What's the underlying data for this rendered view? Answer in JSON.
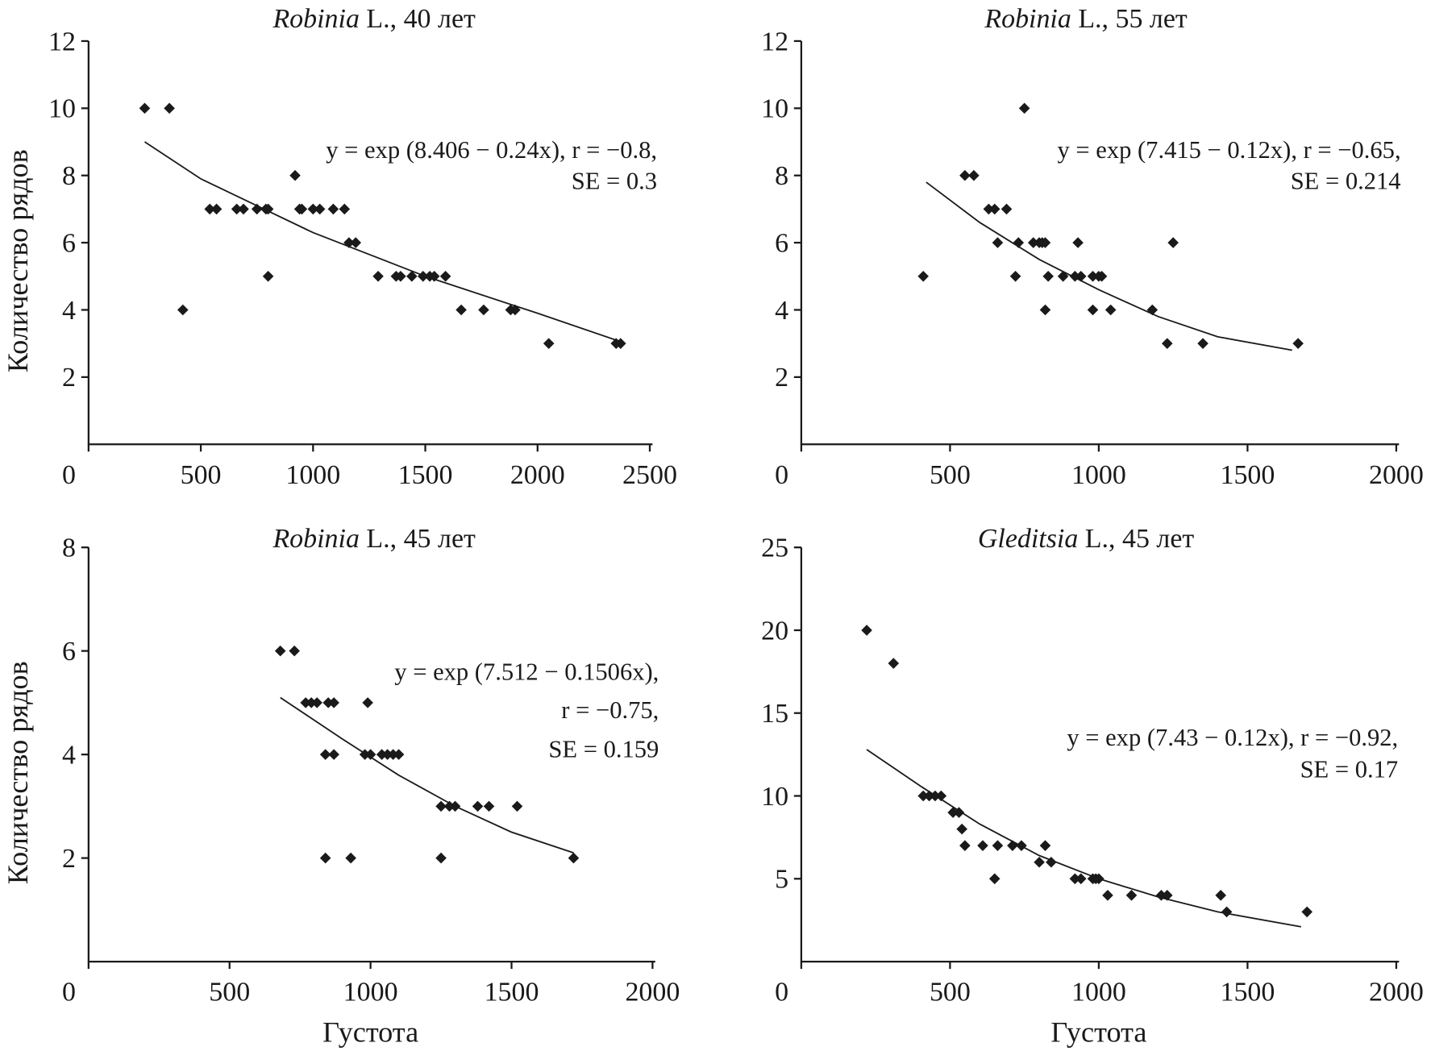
{
  "chart_data": [
    {
      "type": "scatter",
      "title_genus": "Robinia",
      "title_rest": "L., 40 лет",
      "annotation": [
        "y = exp (8.406 − 0.24x), r = −0.8,",
        "SE = 0.3"
      ],
      "y_label": "Количество рядов",
      "xlim": [
        0,
        2500
      ],
      "ylim": [
        0,
        12
      ],
      "xticks": [
        0,
        500,
        1000,
        1500,
        2000,
        2500
      ],
      "yticks": [
        2,
        4,
        6,
        8,
        10,
        12
      ],
      "color": "#1a1a1a",
      "x": [
        250,
        360,
        420,
        540,
        570,
        660,
        690,
        750,
        790,
        800,
        800,
        920,
        940,
        950,
        1000,
        1030,
        1090,
        1140,
        1160,
        1190,
        1290,
        1370,
        1390,
        1440,
        1490,
        1520,
        1540,
        1590,
        1660,
        1760,
        1880,
        1900,
        2050,
        2350,
        2370
      ],
      "values": [
        10,
        10,
        4,
        7,
        7,
        7,
        7,
        7,
        7,
        7,
        5,
        8,
        7,
        7,
        7,
        7,
        7,
        7,
        6,
        6,
        5,
        5,
        5,
        5,
        5,
        5,
        5,
        5,
        4,
        4,
        4,
        4,
        3,
        3,
        3
      ],
      "trend": {
        "x": [
          250,
          500,
          1000,
          1500,
          2000,
          2350
        ],
        "values": [
          9,
          7.9,
          6.3,
          5,
          3.9,
          3.1
        ]
      }
    },
    {
      "type": "scatter",
      "title_genus": "Robinia",
      "title_rest": "L., 55 лет",
      "annotation": [
        "y = exp (7.415 − 0.12x), r = −0.65,",
        "SE = 0.214"
      ],
      "xlim": [
        0,
        2000
      ],
      "ylim": [
        0,
        12
      ],
      "xticks": [
        0,
        500,
        1000,
        1500,
        2000
      ],
      "yticks": [
        2,
        4,
        6,
        8,
        10,
        12
      ],
      "color": "#1a1a1a",
      "x": [
        410,
        550,
        580,
        630,
        650,
        660,
        690,
        720,
        730,
        750,
        780,
        800,
        810,
        820,
        820,
        830,
        880,
        920,
        930,
        940,
        980,
        980,
        1000,
        1010,
        1040,
        1180,
        1230,
        1250,
        1350,
        1670
      ],
      "values": [
        5,
        8,
        8,
        7,
        7,
        6,
        7,
        5,
        6,
        10,
        6,
        6,
        6,
        6,
        4,
        5,
        5,
        5,
        6,
        5,
        5,
        4,
        5,
        5,
        4,
        4,
        3,
        6,
        3,
        3
      ],
      "trend": {
        "x": [
          420,
          600,
          800,
          1000,
          1200,
          1400,
          1650
        ],
        "values": [
          7.8,
          6.6,
          5.5,
          4.6,
          3.8,
          3.2,
          2.8
        ]
      }
    },
    {
      "type": "scatter",
      "title_genus": "Robinia",
      "title_rest": "L., 45 лет",
      "annotation": [
        "y = exp (7.512 − 0.1506x),",
        "r = −0.75,",
        "SE = 0.159"
      ],
      "y_label": "Количество рядов",
      "x_label": "Густота",
      "xlim": [
        0,
        2000
      ],
      "ylim": [
        0,
        8
      ],
      "xticks": [
        0,
        500,
        1000,
        1500,
        2000
      ],
      "yticks": [
        2,
        4,
        6,
        8
      ],
      "color": "#1a1a1a",
      "x": [
        680,
        730,
        770,
        790,
        810,
        850,
        870,
        840,
        870,
        840,
        930,
        980,
        990,
        1000,
        1040,
        1060,
        1080,
        1100,
        1250,
        1280,
        1300,
        1250,
        1380,
        1420,
        1520,
        1720
      ],
      "values": [
        6,
        6,
        5,
        5,
        5,
        5,
        5,
        4,
        4,
        2,
        2,
        4,
        5,
        4,
        4,
        4,
        4,
        4,
        3,
        3,
        3,
        2,
        3,
        3,
        3,
        2
      ],
      "trend": {
        "x": [
          680,
          900,
          1100,
          1300,
          1500,
          1720
        ],
        "values": [
          5.1,
          4.3,
          3.6,
          3,
          2.5,
          2.1
        ]
      }
    },
    {
      "type": "scatter",
      "title_genus": "Gleditsia",
      "title_rest": "L., 45 лет",
      "annotation": [
        "y = exp (7.43 − 0.12x), r = −0.92,",
        "SE = 0.17"
      ],
      "x_label": "Густота",
      "xlim": [
        0,
        2000
      ],
      "ylim": [
        0,
        25
      ],
      "xticks": [
        0,
        500,
        1000,
        1500,
        2000
      ],
      "yticks": [
        5,
        10,
        15,
        20,
        25
      ],
      "color": "#1a1a1a",
      "x": [
        220,
        310,
        410,
        430,
        450,
        470,
        510,
        530,
        540,
        550,
        610,
        650,
        660,
        710,
        740,
        800,
        820,
        840,
        920,
        940,
        980,
        990,
        1000,
        1030,
        1110,
        1210,
        1230,
        1410,
        1430,
        1700
      ],
      "values": [
        20,
        18,
        10,
        10,
        10,
        10,
        9,
        9,
        8,
        7,
        7,
        5,
        7,
        7,
        7,
        6,
        7,
        6,
        5,
        5,
        5,
        5,
        5,
        4,
        4,
        4,
        4,
        4,
        3,
        3
      ],
      "trend": {
        "x": [
          220,
          400,
          600,
          800,
          1000,
          1200,
          1400,
          1680
        ],
        "values": [
          12.8,
          10.6,
          8.3,
          6.4,
          5,
          3.9,
          3,
          2.1
        ]
      }
    }
  ]
}
